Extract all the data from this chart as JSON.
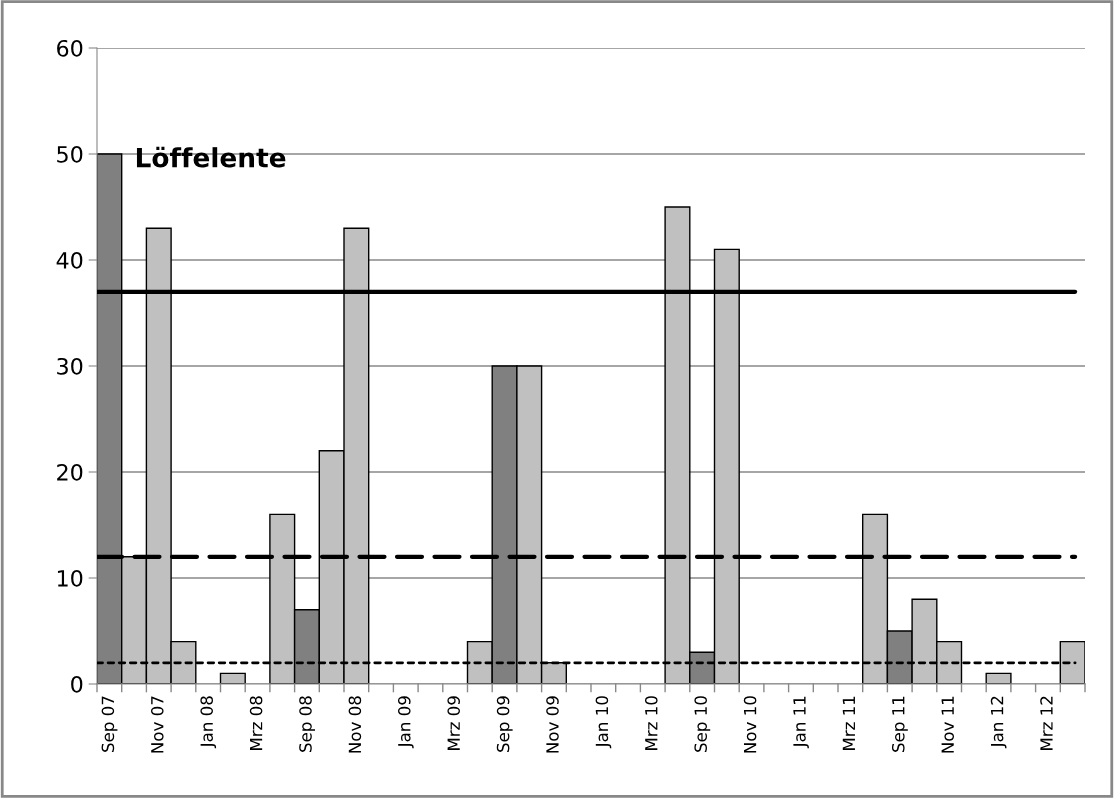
{
  "chart_data": {
    "type": "bar",
    "title": "Löffelente",
    "categories": [
      "Sep 07",
      null,
      "Nov 07",
      null,
      "Jan 08",
      null,
      "Mrz 08",
      null,
      "Sep 08",
      null,
      "Nov 08",
      null,
      "Jan 09",
      null,
      "Mrz 09",
      null,
      "Sep 09",
      null,
      "Nov 09",
      null,
      "Jan 10",
      null,
      "Mrz 10",
      null,
      "Sep 10",
      null,
      "Nov 10",
      null,
      "Jan 11",
      null,
      "Mrz 11",
      null,
      "Sep 11",
      null,
      "Nov 11",
      null,
      "Jan 12",
      null,
      "Mrz 12",
      null
    ],
    "values": [
      50,
      12,
      43,
      4,
      0,
      1,
      0,
      16,
      7,
      22,
      43,
      0,
      0,
      0,
      0,
      4,
      30,
      30,
      2,
      0,
      0,
      0,
      0,
      45,
      3,
      41,
      0,
      0,
      0,
      0,
      0,
      16,
      5,
      8,
      4,
      0,
      1,
      0,
      0,
      4
    ],
    "colors": [
      "#808080",
      "#c0c0c0",
      "#c0c0c0",
      "#c0c0c0",
      "#c0c0c0",
      "#c0c0c0",
      "#c0c0c0",
      "#c0c0c0",
      "#808080",
      "#c0c0c0",
      "#c0c0c0",
      "#c0c0c0",
      "#c0c0c0",
      "#c0c0c0",
      "#c0c0c0",
      "#c0c0c0",
      "#808080",
      "#c0c0c0",
      "#c0c0c0",
      "#c0c0c0",
      "#c0c0c0",
      "#c0c0c0",
      "#c0c0c0",
      "#c0c0c0",
      "#808080",
      "#c0c0c0",
      "#c0c0c0",
      "#c0c0c0",
      "#c0c0c0",
      "#c0c0c0",
      "#c0c0c0",
      "#c0c0c0",
      "#808080",
      "#c0c0c0",
      "#c0c0c0",
      "#c0c0c0",
      "#c0c0c0",
      "#c0c0c0",
      "#c0c0c0",
      "#c0c0c0"
    ],
    "ylim": [
      0,
      60
    ],
    "yticks": [
      0,
      10,
      20,
      30,
      40,
      50,
      60
    ],
    "grid": "y",
    "ref_lines": [
      {
        "axis": "y",
        "value": 37,
        "color": "#000000",
        "line_style": "solid"
      },
      {
        "axis": "y",
        "value": 12,
        "color": "#000000",
        "line_style": "dashed"
      },
      {
        "axis": "y",
        "value": 2,
        "color": "#000000",
        "line_style": "dotted"
      }
    ]
  }
}
